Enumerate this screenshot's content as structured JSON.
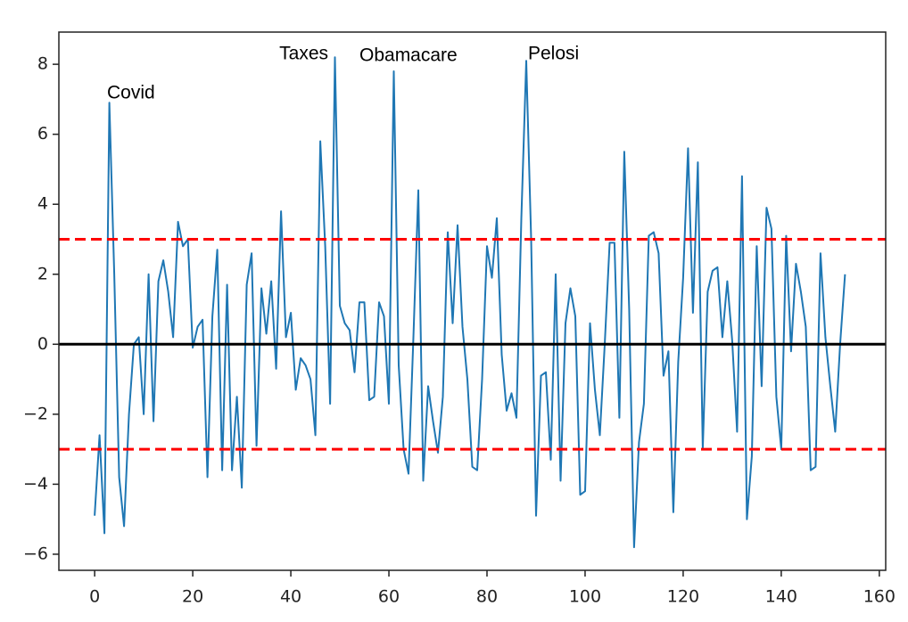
{
  "chart_data": {
    "type": "line",
    "color": "#1f77b4",
    "x": [
      0,
      1,
      2,
      3,
      4,
      5,
      6,
      7,
      8,
      9,
      10,
      11,
      12,
      13,
      14,
      15,
      16,
      17,
      18,
      19,
      20,
      21,
      22,
      23,
      24,
      25,
      26,
      27,
      28,
      29,
      30,
      31,
      32,
      33,
      34,
      35,
      36,
      37,
      38,
      39,
      40,
      41,
      42,
      43,
      44,
      45,
      46,
      47,
      48,
      49,
      50,
      51,
      52,
      53,
      54,
      55,
      56,
      57,
      58,
      59,
      60,
      61,
      62,
      63,
      64,
      65,
      66,
      67,
      68,
      69,
      70,
      71,
      72,
      73,
      74,
      75,
      76,
      77,
      78,
      79,
      80,
      81,
      82,
      83,
      84,
      85,
      86,
      87,
      88,
      89,
      90,
      91,
      92,
      93,
      94,
      95,
      96,
      97,
      98,
      99,
      100,
      101,
      102,
      103,
      104,
      105,
      106,
      107,
      108,
      109,
      110,
      111,
      112,
      113,
      114,
      115,
      116,
      117,
      118,
      119,
      120,
      121,
      122,
      123,
      124,
      125,
      126,
      127,
      128,
      129,
      130,
      131,
      132,
      133,
      134,
      135,
      136,
      137,
      138,
      139,
      140,
      141,
      142,
      143,
      144,
      145,
      146,
      147,
      148,
      149,
      150,
      151,
      152,
      153
    ],
    "values": [
      -4.9,
      -2.6,
      -5.4,
      6.9,
      2.0,
      -3.8,
      -5.2,
      -2.0,
      0.0,
      0.2,
      -2.0,
      2.0,
      -2.2,
      1.8,
      2.4,
      1.5,
      0.2,
      3.5,
      2.8,
      3.0,
      -0.1,
      0.5,
      0.7,
      -3.8,
      0.8,
      2.7,
      -3.6,
      1.7,
      -3.6,
      -1.5,
      -4.1,
      1.7,
      2.6,
      -2.9,
      1.6,
      0.3,
      1.8,
      -0.7,
      3.8,
      0.2,
      0.9,
      -1.3,
      -0.4,
      -0.6,
      -1.0,
      -2.6,
      5.8,
      2.8,
      -1.7,
      8.2,
      1.1,
      0.6,
      0.4,
      -0.8,
      1.2,
      1.2,
      -1.6,
      -1.5,
      1.2,
      0.8,
      -1.7,
      7.8,
      -0.6,
      -3.0,
      -3.7,
      0.2,
      4.4,
      -3.9,
      -1.2,
      -2.2,
      -3.1,
      -1.5,
      3.2,
      0.6,
      3.4,
      0.5,
      -1.0,
      -3.5,
      -3.6,
      -1.0,
      2.8,
      1.9,
      3.6,
      -0.3,
      -1.9,
      -1.4,
      -2.1,
      3.6,
      8.1,
      3.0,
      -4.9,
      -0.9,
      -0.8,
      -3.3,
      2.0,
      -3.9,
      0.6,
      1.6,
      0.8,
      -4.3,
      -4.2,
      0.6,
      -1.3,
      -2.6,
      0.0,
      2.9,
      2.9,
      -2.1,
      5.5,
      1.0,
      -5.8,
      -2.8,
      -1.7,
      3.1,
      3.2,
      2.6,
      -0.9,
      -0.2,
      -4.8,
      -0.5,
      1.9,
      5.6,
      0.9,
      5.2,
      -3.0,
      1.5,
      2.1,
      2.2,
      0.2,
      1.8,
      0.1,
      -2.5,
      4.8,
      -5.0,
      -3.2,
      2.8,
      -1.2,
      3.9,
      3.3,
      -1.5,
      -3.0,
      3.1,
      -0.2,
      2.3,
      1.5,
      0.5,
      -3.6,
      -3.5,
      2.6,
      0.2,
      -1.2,
      -2.5,
      0.0,
      2.0
    ],
    "xlim": [
      -7.3,
      161.3
    ],
    "ylim": [
      -6.46,
      8.92
    ],
    "xticks": [
      0,
      20,
      40,
      60,
      80,
      100,
      120,
      140,
      160
    ],
    "yticks": [
      {
        "value": -6,
        "label": "−6"
      },
      {
        "value": -4,
        "label": "−4"
      },
      {
        "value": -2,
        "label": "−2"
      },
      0,
      2,
      4,
      6,
      8
    ],
    "hlines": [
      {
        "y": 3,
        "color": "#ff0000",
        "dashed": true
      },
      {
        "y": -3,
        "color": "#ff0000",
        "dashed": true
      },
      {
        "y": 0,
        "color": "#000000",
        "dashed": false
      }
    ],
    "annotations": [
      "Covid",
      "Taxes",
      "Obamacare",
      "Pelosi"
    ]
  }
}
